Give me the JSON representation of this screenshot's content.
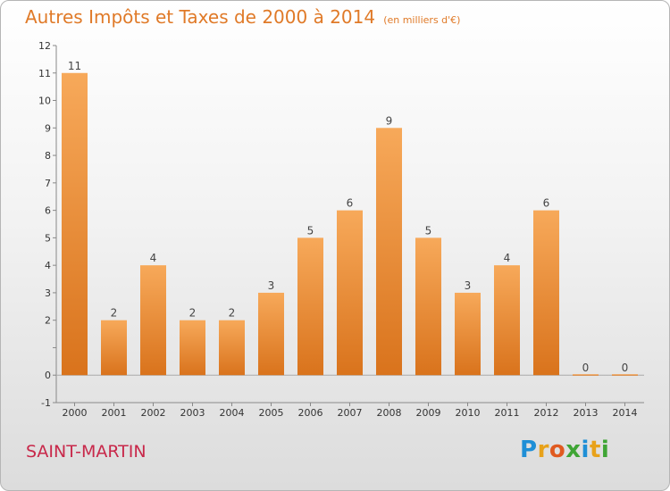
{
  "title": "Autres Impôts et Taxes de 2000 à 2014",
  "unit_note": "(en milliers d'€)",
  "commune": "SAINT-MARTIN",
  "logo": {
    "letters": [
      "P",
      "r",
      "o",
      "x",
      "i",
      "t",
      "i"
    ],
    "colors": [
      "#1f8fd6",
      "#e8a21a",
      "#e05a20",
      "#3fa535",
      "#1f8fd6",
      "#e8a21a",
      "#3fa535"
    ]
  },
  "colors": {
    "title": "#e07a28",
    "commune": "#c8284a",
    "bar_top": "#f7a95a",
    "bar_bottom": "#d9731c"
  },
  "chart_data": {
    "type": "bar",
    "title": "Autres Impôts et Taxes de 2000 à 2014",
    "xlabel": "",
    "ylabel": "",
    "categories": [
      "2000",
      "2001",
      "2002",
      "2003",
      "2004",
      "2005",
      "2006",
      "2007",
      "2008",
      "2009",
      "2010",
      "2011",
      "2012",
      "2013",
      "2014"
    ],
    "values": [
      11,
      2,
      4,
      2,
      2,
      3,
      5,
      6,
      9,
      5,
      3,
      4,
      6,
      0,
      0
    ],
    "ylim": [
      -1,
      12
    ],
    "yticks": [
      -1,
      0,
      1,
      2,
      3,
      4,
      5,
      6,
      7,
      8,
      9,
      10,
      11,
      12
    ],
    "ytick_labels": [
      "-1",
      "0",
      "",
      "2",
      "3",
      "4",
      "5",
      "6",
      "7",
      "8",
      "9",
      "10",
      "11",
      "12"
    ],
    "grid": false,
    "data_labels": true
  }
}
